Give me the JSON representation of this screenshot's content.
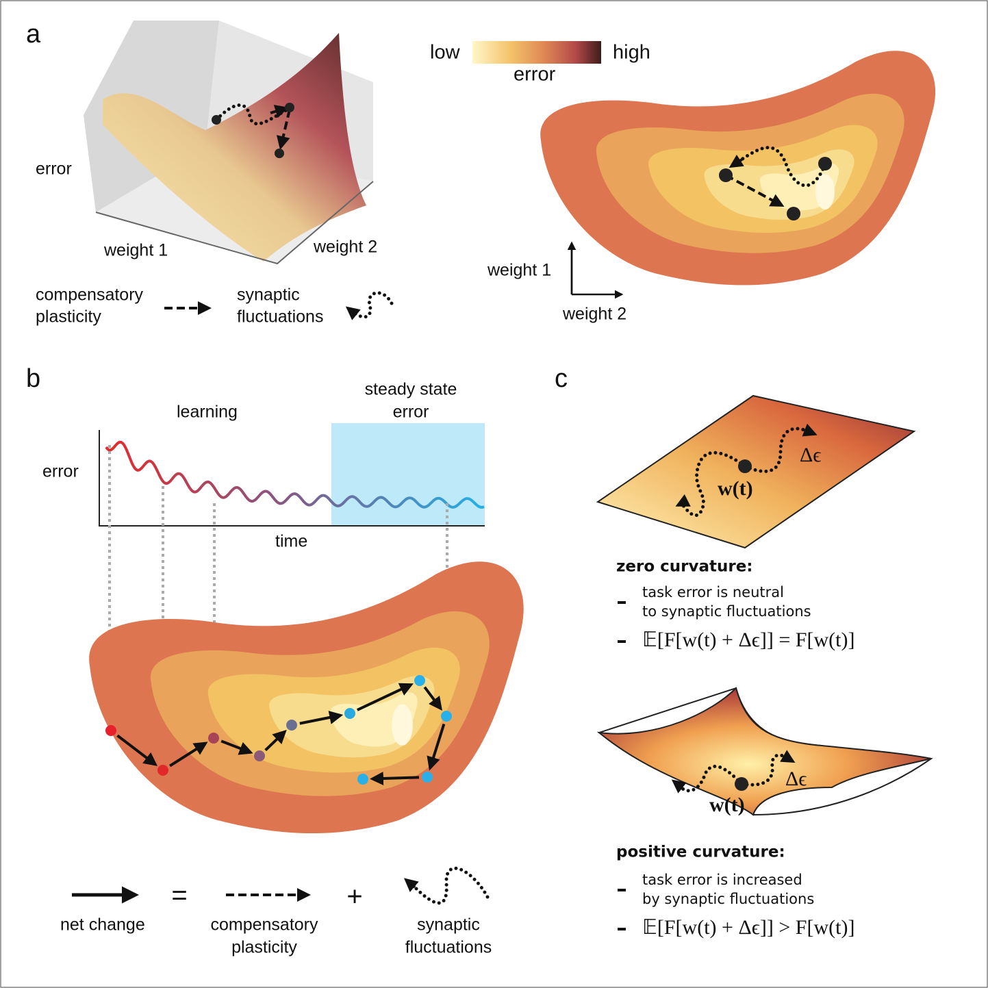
{
  "panel_a": {
    "label": "a",
    "colorbar": {
      "low": "low",
      "high": "high",
      "title": "error"
    },
    "surface_axes": {
      "z": "error",
      "x": "weight 1",
      "y": "weight 2"
    },
    "legend": {
      "compensatory": [
        "compensatory",
        "plasticity"
      ],
      "fluctuations": [
        "synaptic",
        "fluctuations"
      ]
    },
    "contour_axes": {
      "vertical": "weight 1",
      "horizontal": "weight 2"
    }
  },
  "panel_b": {
    "label": "b",
    "learning": "learning",
    "steady_state": [
      "steady state",
      "error"
    ],
    "y_label": "error",
    "x_label": "time",
    "legend": {
      "net_change": "net change",
      "equals": "=",
      "compensatory": [
        "compensatory",
        "plasticity"
      ],
      "plus": "+",
      "fluctuations": [
        "synaptic",
        "fluctuations"
      ]
    }
  },
  "panel_c": {
    "label": "c",
    "zero": {
      "point": "w(t)",
      "step": "Δϵ",
      "title": "zero curvature:",
      "bullets": [
        [
          "task error is neutral",
          "to synaptic fluctuations"
        ],
        [
          "𝔼[F[w(t) + Δϵ]] = F[w(t)]"
        ]
      ]
    },
    "positive": {
      "point": "w(t)",
      "step": "Δϵ",
      "title": "positive curvature:",
      "bullets": [
        [
          "task error is increased",
          "by synaptic fluctuations"
        ],
        [
          "𝔼[F[w(t) + Δϵ]] > F[w(t)]"
        ]
      ]
    }
  }
}
